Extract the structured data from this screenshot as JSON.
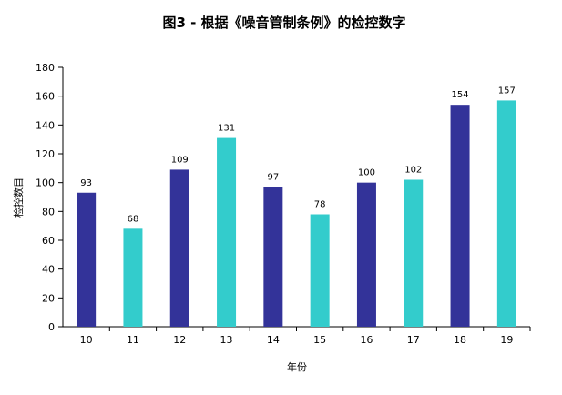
{
  "chart_data": {
    "type": "bar",
    "title": "图3 - 根据《噪音管制条例》的检控数字",
    "xlabel": "年份",
    "ylabel": "检控数目",
    "categories": [
      "10",
      "11",
      "12",
      "13",
      "14",
      "15",
      "16",
      "17",
      "18",
      "19"
    ],
    "values": [
      93,
      68,
      109,
      131,
      97,
      78,
      100,
      102,
      154,
      157
    ],
    "ylim": [
      0,
      180
    ],
    "yticks": [
      0,
      20,
      40,
      60,
      80,
      100,
      120,
      140,
      160,
      180
    ],
    "grid": false,
    "legend": "none",
    "colors": [
      "#333399",
      "#33CCCC"
    ]
  }
}
